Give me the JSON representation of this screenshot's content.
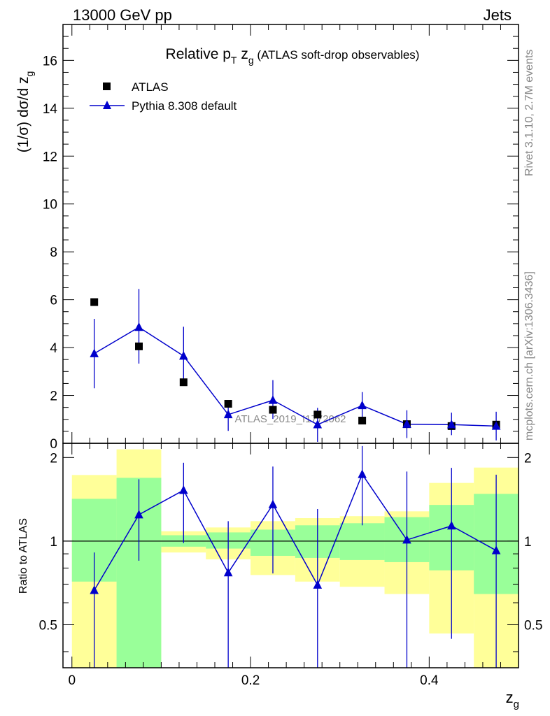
{
  "header": {
    "left": "13000 GeV pp",
    "right": "Jets"
  },
  "side_text": {
    "rivet": "Rivet 3.1.10,  2.7M events",
    "mcplots": "mcplots.cern.ch [arXiv:1306.3436]"
  },
  "chart_data": [
    {
      "type": "scatter",
      "title": "Relative pT zg (ATLAS soft-drop observables)",
      "title_parts": {
        "main": "Relative p",
        "sub1": "T",
        "mid": " z",
        "sub2": "g",
        "rest": " (ATLAS soft-drop observables)"
      },
      "ylabel": "(1/σ) dσ/d zg",
      "ylabel_parts": {
        "main": "(1/σ) dσ/d z",
        "sub": "g"
      },
      "xlim": [
        -0.01,
        0.5
      ],
      "ylim": [
        0,
        17.5
      ],
      "yticks": [
        0,
        2,
        4,
        6,
        8,
        10,
        12,
        14,
        16
      ],
      "ytick_labels": [
        "0",
        "2",
        "4",
        "6",
        "8",
        "10",
        "12",
        "14",
        "16"
      ],
      "watermark": "ATLAS_2019_I1772062",
      "legend": {
        "position": "top-left",
        "entries": [
          "ATLAS",
          "Pythia 8.308 default"
        ]
      },
      "bins": [
        [
          0.0,
          0.05
        ],
        [
          0.05,
          0.1
        ],
        [
          0.1,
          0.15
        ],
        [
          0.15,
          0.2
        ],
        [
          0.2,
          0.25
        ],
        [
          0.25,
          0.3
        ],
        [
          0.3,
          0.35
        ],
        [
          0.35,
          0.4
        ],
        [
          0.4,
          0.45
        ],
        [
          0.45,
          0.5
        ]
      ],
      "x": [
        0.025,
        0.075,
        0.125,
        0.175,
        0.225,
        0.275,
        0.325,
        0.375,
        0.425,
        0.475
      ],
      "series": [
        {
          "name": "ATLAS",
          "marker": "square",
          "color": "#000000",
          "values": [
            5.9,
            4.05,
            2.55,
            1.65,
            1.4,
            1.2,
            0.95,
            0.8,
            0.72,
            0.78
          ]
        },
        {
          "name": "Pythia 8.308 default",
          "marker": "triangle",
          "color": "#0000cc",
          "values": [
            3.75,
            4.85,
            3.65,
            1.2,
            1.8,
            0.78,
            1.58,
            0.8,
            0.78,
            0.72
          ],
          "err_low": [
            1.45,
            1.52,
            1.22,
            0.68,
            0.78,
            0.72,
            0.56,
            0.58,
            0.44,
            0.6
          ],
          "err_high": [
            1.45,
            1.6,
            1.22,
            0.52,
            0.84,
            0.7,
            0.56,
            0.58,
            0.5,
            0.6
          ]
        }
      ]
    },
    {
      "type": "scatter",
      "ylabel": "Ratio to ATLAS",
      "xlabel": "zg",
      "xlabel_parts": {
        "main": "z",
        "sub": "g"
      },
      "xlim": [
        -0.01,
        0.5
      ],
      "ylim": [
        0.35,
        2.25
      ],
      "xticks": [
        0,
        0.2,
        0.4
      ],
      "xtick_labels": [
        "0",
        "0.2",
        "0.4"
      ],
      "yticks": [
        0.5,
        1,
        2
      ],
      "ytick_labels": [
        "0.5",
        "1",
        "2"
      ],
      "x": [
        0.025,
        0.075,
        0.125,
        0.175,
        0.225,
        0.275,
        0.325,
        0.375,
        0.425,
        0.475
      ],
      "bins": [
        [
          0.0,
          0.05
        ],
        [
          0.05,
          0.1
        ],
        [
          0.1,
          0.15
        ],
        [
          0.15,
          0.2
        ],
        [
          0.2,
          0.25
        ],
        [
          0.25,
          0.3
        ],
        [
          0.3,
          0.35
        ],
        [
          0.35,
          0.4
        ],
        [
          0.4,
          0.45
        ],
        [
          0.45,
          0.5
        ]
      ],
      "band_outer": {
        "color": "#ffff99",
        "low": [
          0.35,
          0.35,
          0.91,
          0.86,
          0.755,
          0.715,
          0.685,
          0.645,
          0.465,
          0.35
        ],
        "high": [
          1.73,
          2.14,
          1.085,
          1.12,
          1.18,
          1.21,
          1.23,
          1.28,
          1.62,
          1.84
        ]
      },
      "band_inner": {
        "color": "#99ff99",
        "low": [
          0.715,
          0.35,
          0.955,
          0.94,
          0.885,
          0.87,
          0.855,
          0.84,
          0.785,
          0.645
        ],
        "high": [
          1.42,
          1.69,
          1.05,
          1.075,
          1.1,
          1.14,
          1.16,
          1.22,
          1.35,
          1.48
        ]
      },
      "reference_line": 1,
      "series": [
        {
          "name": "Pythia 8.308 default",
          "marker": "triangle",
          "color": "#0000cc",
          "values": [
            0.665,
            1.245,
            1.525,
            0.77,
            1.355,
            0.695,
            1.74,
            1.01,
            1.135,
            0.925
          ],
          "err_low": [
            0.45,
            0.395,
            0.54,
            0.45,
            0.59,
            0.35,
            0.6,
            0.7,
            0.69,
            0.6
          ],
          "err_high": [
            0.245,
            0.425,
            0.39,
            0.41,
            0.5,
            0.61,
            0.46,
            0.77,
            0.7,
            0.81
          ]
        }
      ]
    }
  ]
}
